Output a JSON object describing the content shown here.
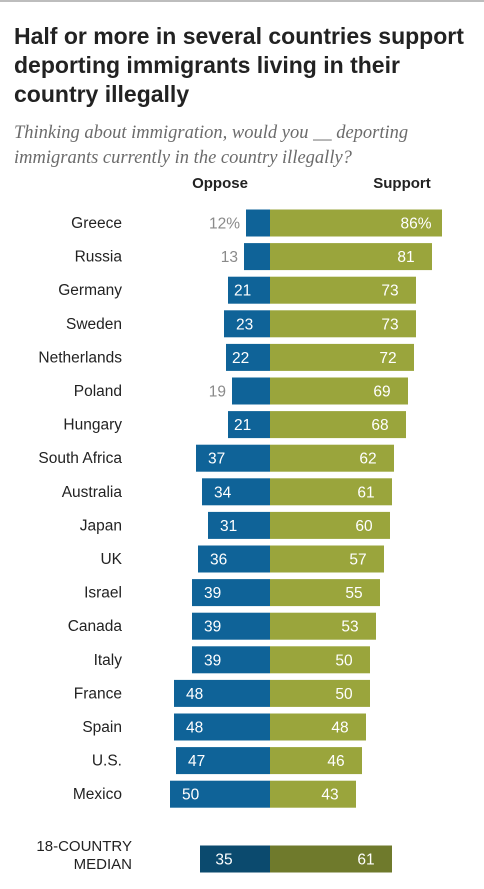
{
  "title": "Half or more in several countries support deporting immigrants living in their country illegally",
  "subtitle": "Thinking about immigration, would you __ deporting immigrants currently in the country illegally?",
  "colors": {
    "oppose": "#0f6398",
    "support": "#9aa53c",
    "median_oppose": "#0b4a6e",
    "median_support": "#6f7a2c"
  },
  "median": {
    "label_line1": "18-COUNTRY",
    "label_line2": "MEDIAN",
    "oppose": 35,
    "support": 61
  },
  "chart_data": {
    "type": "bar",
    "categories": [
      "Greece",
      "Russia",
      "Germany",
      "Sweden",
      "Netherlands",
      "Poland",
      "Hungary",
      "South Africa",
      "Australia",
      "Japan",
      "UK",
      "Israel",
      "Canada",
      "Italy",
      "France",
      "Spain",
      "U.S.",
      "Mexico"
    ],
    "series": [
      {
        "name": "Oppose",
        "values": [
          12,
          13,
          21,
          23,
          22,
          19,
          21,
          37,
          34,
          31,
          36,
          39,
          39,
          39,
          48,
          48,
          47,
          50
        ]
      },
      {
        "name": "Support",
        "values": [
          86,
          81,
          73,
          73,
          72,
          69,
          68,
          62,
          61,
          60,
          57,
          55,
          53,
          50,
          50,
          48,
          46,
          43
        ]
      }
    ],
    "value_labels_first": [
      "12%",
      "86%"
    ],
    "xlim": [
      0,
      100
    ]
  }
}
